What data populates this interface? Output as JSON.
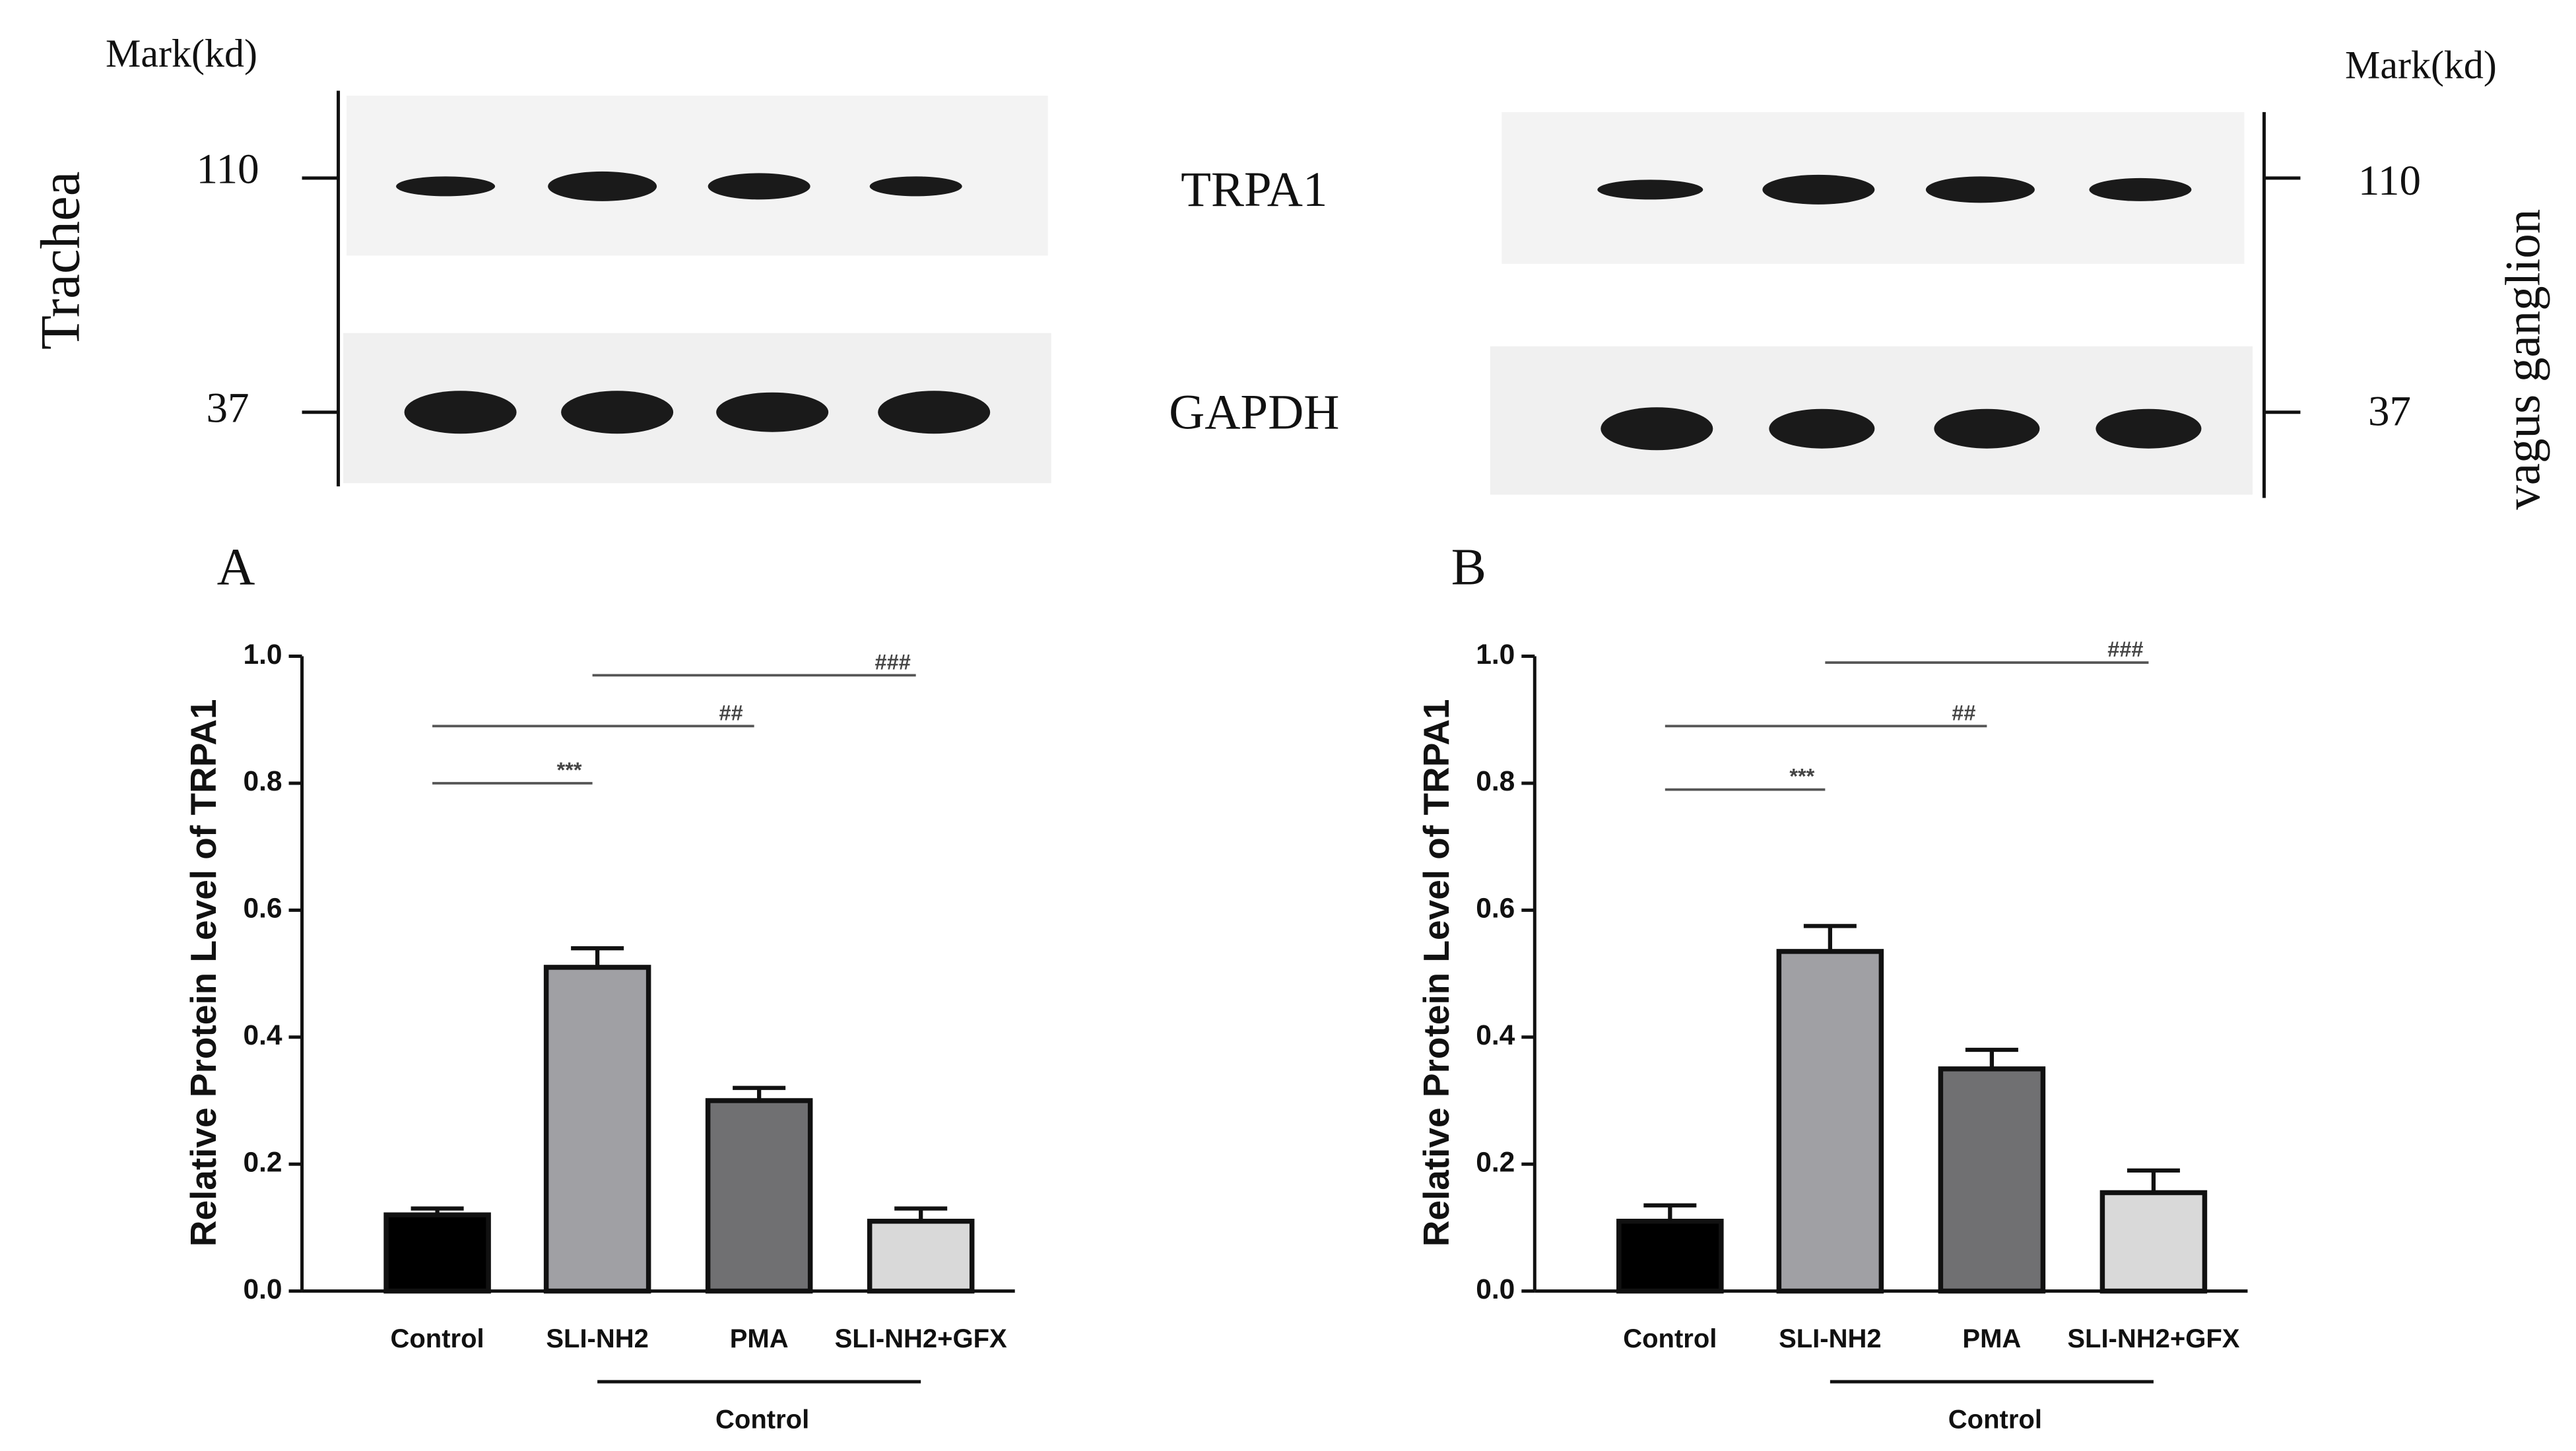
{
  "blot": {
    "left": {
      "marker_header": "Mark(kd)",
      "markers": [
        "110",
        "37"
      ],
      "tissue": "Trachea"
    },
    "right": {
      "marker_header": "Mark(kd)",
      "markers": [
        "110",
        "37"
      ],
      "tissue": "vagus ganglion"
    },
    "proteins": [
      "TRPA1",
      "GAPDH"
    ]
  },
  "chart_data": [
    {
      "type": "bar",
      "panel": "A",
      "y_label": "Relative Protein Level of TRPA1",
      "categories": [
        "Control",
        "SLI-NH2",
        "PMA",
        "SLI-NH2+GFX"
      ],
      "values": [
        0.12,
        0.51,
        0.3,
        0.11
      ],
      "errors": [
        0.01,
        0.03,
        0.02,
        0.02
      ],
      "colors": [
        "#000000",
        "#a0a0a4",
        "#707072",
        "#d9d9d9"
      ],
      "group_label": "Control",
      "ylim": [
        0,
        1
      ],
      "yticks": [
        {
          "value": 0,
          "label": "0.0"
        },
        0.2,
        0.4,
        0.6,
        0.8,
        {
          "value": 1,
          "label": "1.0"
        }
      ],
      "annotations": [
        {
          "from": "Control",
          "to": "SLI-NH2",
          "label": "***",
          "y": 0.8
        },
        {
          "from": "Control",
          "to": "PMA",
          "label": "##",
          "y": 0.89
        },
        {
          "from": "SLI-NH2",
          "to": "SLI-NH2+GFX",
          "label": "###",
          "y": 0.97
        }
      ]
    },
    {
      "type": "bar",
      "panel": "B",
      "y_label": "Relative Protein Level of TRPA1",
      "categories": [
        "Control",
        "SLI-NH2",
        "PMA",
        "SLI-NH2+GFX"
      ],
      "values": [
        0.11,
        0.535,
        0.35,
        0.155
      ],
      "errors": [
        0.025,
        0.04,
        0.03,
        0.035
      ],
      "colors": [
        "#000000",
        "#a0a0a4",
        "#707072",
        "#d9d9d9"
      ],
      "group_label": "Control",
      "ylim": [
        0,
        1
      ],
      "yticks": [
        {
          "value": 0,
          "label": "0.0"
        },
        0.2,
        0.4,
        0.6,
        0.8,
        {
          "value": 1,
          "label": "1.0"
        }
      ],
      "annotations": [
        {
          "from": "Control",
          "to": "SLI-NH2",
          "label": "***",
          "y": 0.79
        },
        {
          "from": "Control",
          "to": "PMA",
          "label": "##",
          "y": 0.89
        },
        {
          "from": "SLI-NH2",
          "to": "SLI-NH2+GFX",
          "label": "###",
          "y": 0.99
        }
      ]
    }
  ]
}
